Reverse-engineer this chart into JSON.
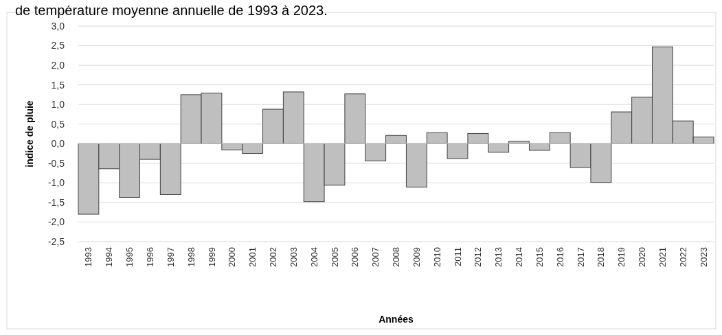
{
  "chart_data": {
    "type": "bar",
    "title": "de température moyenne annuelle de 1993 à 2023.",
    "xlabel": "Années",
    "ylabel": "indice de pluie",
    "categories": [
      "1993",
      "1994",
      "1995",
      "1996",
      "1997",
      "1998",
      "1999",
      "2000",
      "2001",
      "2002",
      "2003",
      "2004",
      "2005",
      "2006",
      "2007",
      "2008",
      "2009",
      "2010",
      "2011",
      "2012",
      "2013",
      "2014",
      "2015",
      "2016",
      "2017",
      "2018",
      "2019",
      "2020",
      "2021",
      "2022",
      "2023"
    ],
    "values": [
      -1.8,
      -0.64,
      -1.37,
      -0.4,
      -1.3,
      1.25,
      1.29,
      -0.16,
      -0.25,
      0.88,
      1.32,
      -1.48,
      -1.06,
      1.27,
      -0.44,
      0.21,
      -1.11,
      0.28,
      -0.38,
      0.26,
      -0.22,
      0.06,
      -0.17,
      0.28,
      -0.61,
      -0.99,
      0.81,
      1.19,
      2.47,
      0.58,
      0.17
    ],
    "color": "#bfbfbf",
    "ylim": [
      -2.5,
      3
    ],
    "yticks": [
      {
        "value": -2.5,
        "label": "-2,5"
      },
      {
        "value": -2,
        "label": "-2,0"
      },
      {
        "value": -1.5,
        "label": "-1,5"
      },
      {
        "value": -1,
        "label": "-1,0"
      },
      {
        "value": -0.5,
        "label": "-0,5"
      },
      {
        "value": 0,
        "label": "0,0"
      },
      {
        "value": 0.5,
        "label": "0,5"
      },
      {
        "value": 1,
        "label": "1,0"
      },
      {
        "value": 1.5,
        "label": "1,5"
      },
      {
        "value": 2,
        "label": "2,0"
      },
      {
        "value": 2.5,
        "label": "2,5"
      },
      {
        "value": 3,
        "label": "3,0"
      }
    ],
    "grid": "y"
  }
}
